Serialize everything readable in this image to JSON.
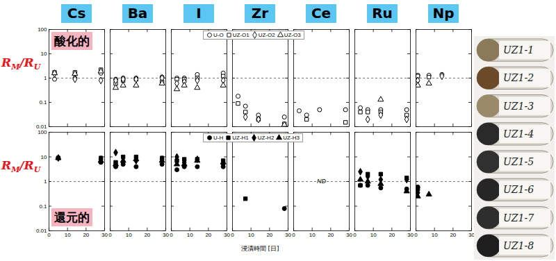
{
  "chart_data": [
    {
      "type": "scatter",
      "log": "y",
      "xlim": [
        0,
        30
      ],
      "xticks": [
        0,
        10,
        20,
        30
      ],
      "ylim": [
        0.01,
        100
      ],
      "yticks": [
        0.01,
        0.1,
        1,
        10,
        100
      ],
      "y_label": {
        "numerator": {
          "symbol": "R",
          "subscript": "M"
        },
        "separator": "/",
        "denominator": {
          "symbol": "R",
          "subscript": "U"
        }
      },
      "label": "酸化的",
      "reference_line": 1,
      "legend": "top",
      "series": [
        {
          "name": "U-O",
          "marker": "circle-open",
          "color": "#000000"
        },
        {
          "name": "UZ-O1",
          "marker": "square-open",
          "color": "#000000"
        },
        {
          "name": "UZ-O2",
          "marker": "diamond-open",
          "color": "#000000"
        },
        {
          "name": "UZ-O3",
          "marker": "triangle-open",
          "color": "#000000"
        }
      ],
      "panels": [
        {
          "title": "Cs",
          "tick_labels": "y",
          "series": [
            {
              "name": "U-O",
              "x": [
                3,
                14,
                28
              ],
              "values": [
                0.9,
                1.0,
                1.6
              ]
            },
            {
              "name": "UZ-O1",
              "x": [
                3,
                14,
                28
              ],
              "values": [
                1.7,
                1.7,
                2.2
              ]
            },
            {
              "name": "UZ-O2",
              "x": [
                3,
                14,
                28
              ],
              "values": [
                1.5,
                0.9,
                0.8
              ]
            },
            {
              "name": "UZ-O3",
              "x": [
                3,
                14,
                28
              ],
              "values": [
                1.6,
                1.5,
                1.9
              ]
            }
          ]
        },
        {
          "title": "Ba",
          "tick_labels": false,
          "series": [
            {
              "name": "U-O",
              "x": [
                3,
                7,
                14,
                28
              ],
              "values": [
                0.9,
                1.0,
                1.0,
                1.1
              ]
            },
            {
              "name": "UZ-O1",
              "x": [
                3,
                7,
                14,
                28
              ],
              "values": [
                0.6,
                0.8,
                0.9,
                0.7
              ]
            },
            {
              "name": "UZ-O2",
              "x": [
                3,
                7,
                14,
                28
              ],
              "values": [
                0.8,
                0.9,
                0.9,
                1.0
              ]
            },
            {
              "name": "UZ-O3",
              "x": [
                3,
                7,
                14,
                28
              ],
              "values": [
                0.4,
                0.5,
                0.5,
                0.6
              ]
            }
          ]
        },
        {
          "title": "I",
          "tick_labels": false,
          "series": [
            {
              "name": "U-O",
              "x": [
                3,
                7,
                14,
                28
              ],
              "values": [
                1.0,
                1.0,
                1.4,
                1.6
              ]
            },
            {
              "name": "UZ-O1",
              "x": [
                3,
                7,
                14,
                28
              ],
              "values": [
                0.9,
                0.9,
                1.0,
                1.2
              ]
            },
            {
              "name": "UZ-O2",
              "x": [
                3,
                7,
                14,
                28
              ],
              "values": [
                0.6,
                0.7,
                0.8,
                0.8
              ]
            },
            {
              "name": "UZ-O3",
              "x": [
                3,
                7,
                14,
                28
              ],
              "values": [
                0.35,
                0.5,
                0.4,
                0.5
              ]
            }
          ]
        },
        {
          "title": "Zr",
          "tick_labels": false,
          "series": [
            {
              "name": "U-O",
              "x": [
                3,
                7,
                14,
                28
              ],
              "values": [
                0.18,
                0.07,
                0.03,
                0.025
              ]
            },
            {
              "name": "UZ-O1",
              "x": [
                3,
                7,
                14,
                28
              ],
              "values": [
                0.09,
                0.04,
                0.02,
                0.013
              ]
            },
            {
              "name": "UZ-O2",
              "x": [
                7,
                14
              ],
              "values": [
                0.025,
                0.02
              ]
            },
            {
              "name": "UZ-O3",
              "x": [
                28
              ],
              "values": [
                0.012
              ]
            }
          ]
        },
        {
          "title": "Ce",
          "tick_labels": false,
          "series": [
            {
              "name": "U-O",
              "x": [
                3,
                7,
                14,
                28
              ],
              "values": [
                0.045,
                0.03,
                0.05,
                0.05
              ]
            },
            {
              "name": "UZ-O1",
              "x": [
                7,
                28
              ],
              "values": [
                0.02,
                0.015
              ]
            }
          ]
        },
        {
          "title": "Ru",
          "tick_labels": false,
          "series": [
            {
              "name": "U-O",
              "x": [
                3,
                7,
                14,
                28
              ],
              "values": [
                0.06,
                0.05,
                0.05,
                0.05
              ]
            },
            {
              "name": "UZ-O1",
              "x": [
                3,
                7,
                14,
                28
              ],
              "values": [
                0.04,
                0.04,
                0.04,
                0.03
              ]
            },
            {
              "name": "UZ-O2",
              "x": [
                7,
                14,
                28
              ],
              "values": [
                0.02,
                0.03,
                0.02
              ]
            },
            {
              "name": "UZ-O3",
              "x": [
                14
              ],
              "values": [
                0.13
              ]
            }
          ]
        },
        {
          "title": "Np",
          "tick_labels": false,
          "series": [
            {
              "name": "U-O",
              "x": [
                1,
                7,
                14
              ],
              "values": [
                1.3,
                1.3,
                1.4
              ]
            },
            {
              "name": "UZ-O1",
              "x": [
                1,
                7
              ],
              "values": [
                1.2,
                1.1
              ]
            },
            {
              "name": "UZ-O2",
              "x": [
                1,
                14
              ],
              "values": [
                0.8,
                1.2
              ]
            },
            {
              "name": "UZ-O3",
              "x": [
                1,
                7
              ],
              "values": [
                0.5,
                0.6
              ]
            }
          ]
        }
      ]
    },
    {
      "type": "scatter",
      "log": "y",
      "xlim": [
        0,
        30
      ],
      "xticks": [
        0,
        10,
        20,
        30
      ],
      "ylim": [
        0.01,
        100
      ],
      "yticks": [
        0.01,
        0.1,
        1,
        10,
        100
      ],
      "y_label": {
        "numerator": {
          "symbol": "R",
          "subscript": "M"
        },
        "separator": "/",
        "denominator": {
          "symbol": "R",
          "subscript": "U"
        }
      },
      "x_label": "浸漬時間 [日]",
      "label": "還元的",
      "reference_line": 1,
      "legend": "top",
      "series": [
        {
          "name": "U-H",
          "marker": "circle",
          "color": "#000000"
        },
        {
          "name": "UZ-H1",
          "marker": "square",
          "color": "#000000"
        },
        {
          "name": "UZ-H2",
          "marker": "diamond",
          "color": "#000000"
        },
        {
          "name": "UZ-H3",
          "marker": "triangle",
          "color": "#000000"
        }
      ],
      "panels": [
        {
          "tick_labels": true,
          "series": [
            {
              "name": "U-H",
              "x": [
                5,
                28
              ],
              "values": [
                9,
                6
              ]
            },
            {
              "name": "UZ-H1",
              "x": [
                5,
                28
              ],
              "values": [
                9,
                9
              ]
            },
            {
              "name": "UZ-H2",
              "x": [
                5,
                28
              ],
              "values": [
                9,
                8
              ]
            },
            {
              "name": "UZ-H3",
              "x": [
                5,
                28
              ],
              "values": [
                9,
                7
              ]
            }
          ]
        },
        {
          "tick_labels": "x",
          "series": [
            {
              "name": "U-H",
              "x": [
                3,
                7,
                14,
                28
              ],
              "values": [
                4,
                5,
                4,
                5
              ]
            },
            {
              "name": "UZ-H1",
              "x": [
                3,
                7,
                14,
                28
              ],
              "values": [
                6,
                10,
                10,
                9
              ]
            },
            {
              "name": "UZ-H2",
              "x": [
                3,
                7,
                14,
                28
              ],
              "values": [
                15,
                6,
                7,
                8
              ]
            },
            {
              "name": "UZ-H3",
              "x": [
                3,
                7,
                14,
                28
              ],
              "values": [
                5,
                7,
                8,
                7
              ]
            }
          ]
        },
        {
          "tick_labels": "x",
          "series": [
            {
              "name": "U-H",
              "x": [
                3,
                7,
                14,
                28
              ],
              "values": [
                3,
                4,
                4,
                4
              ]
            },
            {
              "name": "UZ-H1",
              "x": [
                3,
                7,
                14,
                28
              ],
              "values": [
                7,
                8,
                8,
                7
              ]
            },
            {
              "name": "UZ-H2",
              "x": [
                3,
                7,
                14,
                28
              ],
              "values": [
                10,
                6,
                8,
                5
              ]
            },
            {
              "name": "UZ-H3",
              "x": [
                3,
                7,
                14,
                28
              ],
              "values": [
                5,
                5,
                7,
                6
              ]
            }
          ]
        },
        {
          "tick_labels": "x",
          "series": [
            {
              "name": "U-H",
              "x": [
                28
              ],
              "values": [
                0.08
              ]
            },
            {
              "name": "UZ-H1",
              "x": [
                7
              ],
              "values": [
                0.2
              ]
            }
          ]
        },
        {
          "tick_labels": "x",
          "annotation": "ND",
          "series": []
        },
        {
          "tick_labels": "x",
          "series": [
            {
              "name": "U-H",
              "x": [
                3,
                7,
                14,
                28
              ],
              "values": [
                0.7,
                0.7,
                0.55,
                0.5
              ]
            },
            {
              "name": "UZ-H1",
              "x": [
                3,
                7,
                14,
                28
              ],
              "values": [
                0.7,
                2,
                2,
                1.4
              ]
            },
            {
              "name": "UZ-H2",
              "x": [
                3,
                7,
                14,
                28
              ],
              "values": [
                2.5,
                1.6,
                1.2,
                1.2
              ]
            },
            {
              "name": "UZ-H3",
              "x": [
                3,
                7,
                14,
                28
              ],
              "values": [
                1.2,
                1.0,
                0.8,
                0.4
              ]
            }
          ]
        },
        {
          "tick_labels": "x",
          "series": [
            {
              "name": "U-H",
              "x": [
                1
              ],
              "values": [
                0.6
              ]
            },
            {
              "name": "UZ-H1",
              "x": [
                1
              ],
              "values": [
                0.5
              ]
            },
            {
              "name": "UZ-H2",
              "x": [
                1
              ],
              "values": [
                0.35
              ]
            },
            {
              "name": "UZ-H3",
              "x": [
                1,
                7
              ],
              "values": [
                0.25,
                0.3
              ]
            }
          ]
        }
      ]
    }
  ],
  "photo": {
    "labels": [
      "UZ1-1",
      "UZ1-2",
      "UZ1-3",
      "UZ1-4",
      "UZ1-5",
      "UZ1-6",
      "UZ1-7",
      "UZ1-8"
    ]
  }
}
